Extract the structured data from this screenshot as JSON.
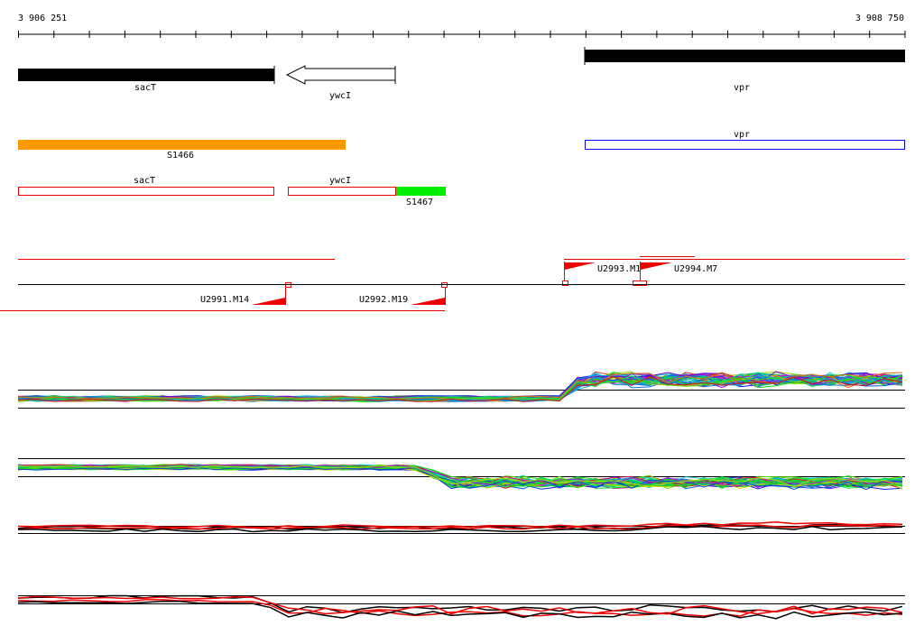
{
  "ruler": {
    "start": "3 906 251",
    "end": "3 908 750"
  },
  "genes": [
    {
      "label": "sacT"
    },
    {
      "label": "ywcI"
    },
    {
      "label": "vpr"
    }
  ],
  "segments": [
    {
      "label": "S1466"
    },
    {
      "label": "vpr"
    }
  ],
  "transcripts": [
    {
      "label": "sacT"
    },
    {
      "label": "ywcI"
    },
    {
      "label": "S1467"
    }
  ],
  "markers": [
    {
      "label": "U2993.M1"
    },
    {
      "label": "U2994.M7"
    },
    {
      "label": "U2991.M14"
    },
    {
      "label": "U2992.M19"
    }
  ]
}
